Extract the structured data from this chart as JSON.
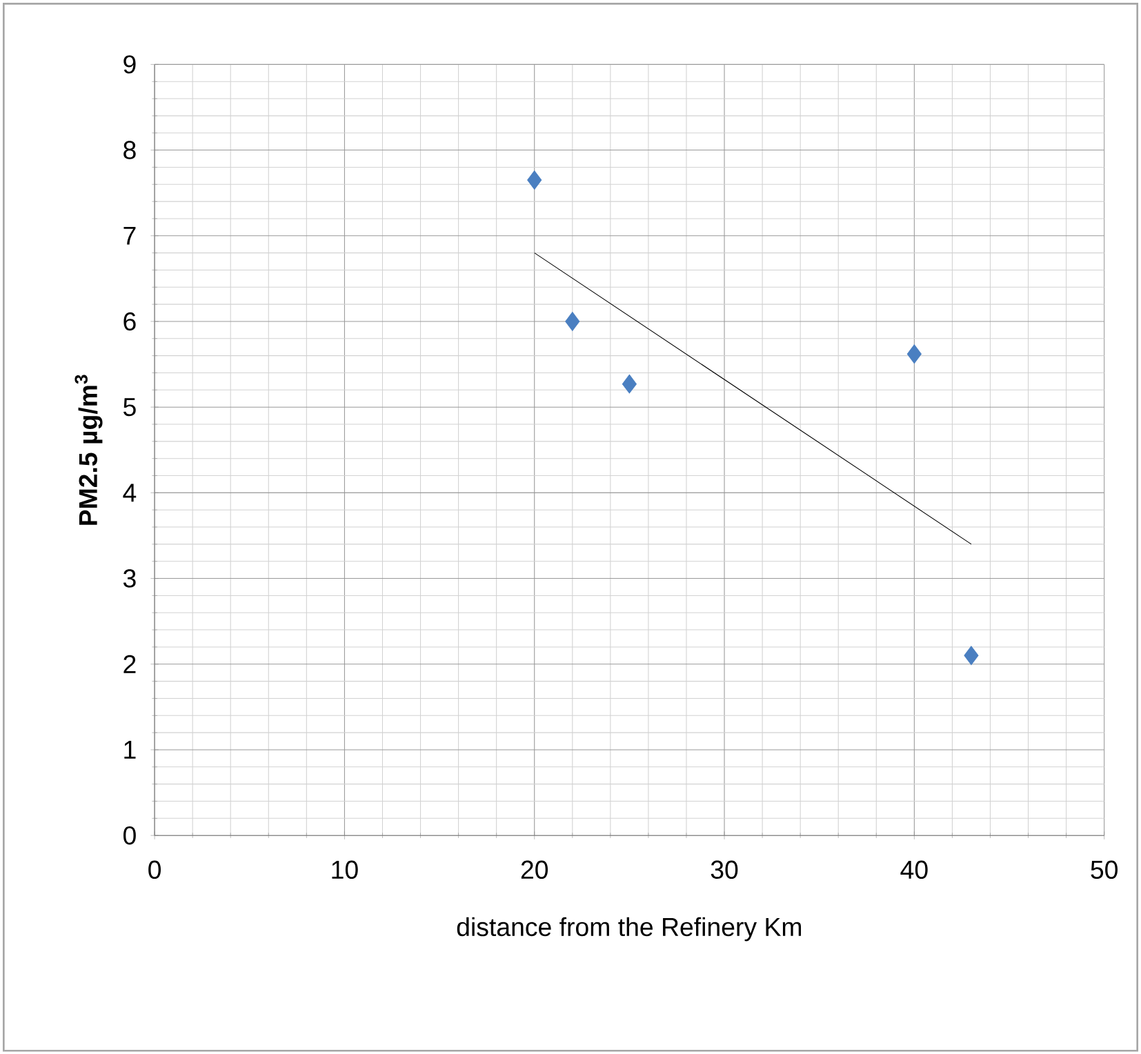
{
  "chart_data": {
    "type": "scatter",
    "xlabel": "distance from the Refinery Km",
    "ylabel": "PM2.5 µg/m$^{3}$",
    "xlim": [
      0,
      50
    ],
    "ylim": [
      0,
      9
    ],
    "xticks": [
      0,
      10,
      20,
      30,
      40,
      50
    ],
    "yticks": [
      0,
      1,
      2,
      3,
      4,
      5,
      6,
      7,
      8,
      9
    ],
    "grid": true,
    "marker": "diamond",
    "series": [
      {
        "color": "#4a7fc1",
        "x": [
          20,
          22,
          25,
          40,
          43
        ],
        "values": [
          7.65,
          6.0,
          5.27,
          5.62,
          2.1
        ]
      },
      {
        "type": "line",
        "color": "#000000",
        "marker": "none",
        "x": [
          20,
          43
        ],
        "values": [
          6.8,
          3.4
        ]
      }
    ]
  }
}
